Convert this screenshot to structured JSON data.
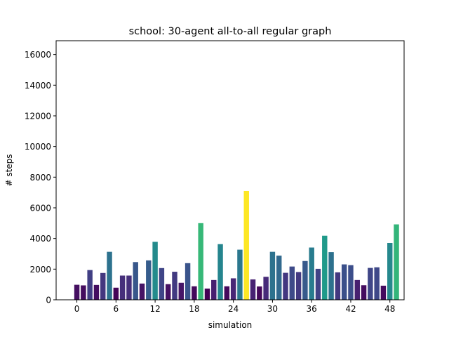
{
  "chart_data": {
    "type": "bar",
    "title": "school: 30-agent all-to-all regular graph",
    "xlabel": "simulation",
    "ylabel": "# steps",
    "xlim": [
      -3.18,
      50.18
    ],
    "ylim": [
      0,
      16900
    ],
    "xticks": [
      0,
      6,
      12,
      18,
      24,
      30,
      36,
      42,
      48
    ],
    "xtick_labels": [
      "0",
      "6",
      "12",
      "18",
      "24",
      "30",
      "36",
      "42",
      "48"
    ],
    "yticks": [
      0,
      2000,
      4000,
      6000,
      8000,
      10000,
      12000,
      14000,
      16000
    ],
    "ytick_labels": [
      "0",
      "2000",
      "4000",
      "6000",
      "8000",
      "10000",
      "12000",
      "14000",
      "16000"
    ],
    "grid": false,
    "colormap": "viridis",
    "color_min": 730,
    "color_max": 7100,
    "x": [
      0,
      1,
      2,
      3,
      4,
      5,
      6,
      7,
      8,
      9,
      10,
      11,
      12,
      13,
      14,
      15,
      16,
      17,
      18,
      19,
      20,
      21,
      22,
      23,
      24,
      25,
      26,
      27,
      28,
      29,
      30,
      31,
      32,
      33,
      34,
      35,
      36,
      37,
      38,
      39,
      40,
      41,
      42,
      43,
      44,
      45,
      46,
      47,
      48,
      49
    ],
    "values": [
      980,
      940,
      1940,
      970,
      1750,
      3130,
      790,
      1580,
      1580,
      2460,
      1060,
      2570,
      3780,
      2070,
      1020,
      1830,
      1110,
      2390,
      880,
      5000,
      730,
      1290,
      3630,
      880,
      1400,
      3270,
      7100,
      1330,
      870,
      1500,
      3130,
      2880,
      1760,
      2170,
      1810,
      2530,
      3410,
      2020,
      4180,
      3110,
      1790,
      2310,
      2260,
      1290,
      950,
      2080,
      2120,
      920,
      3710,
      4920
    ]
  }
}
